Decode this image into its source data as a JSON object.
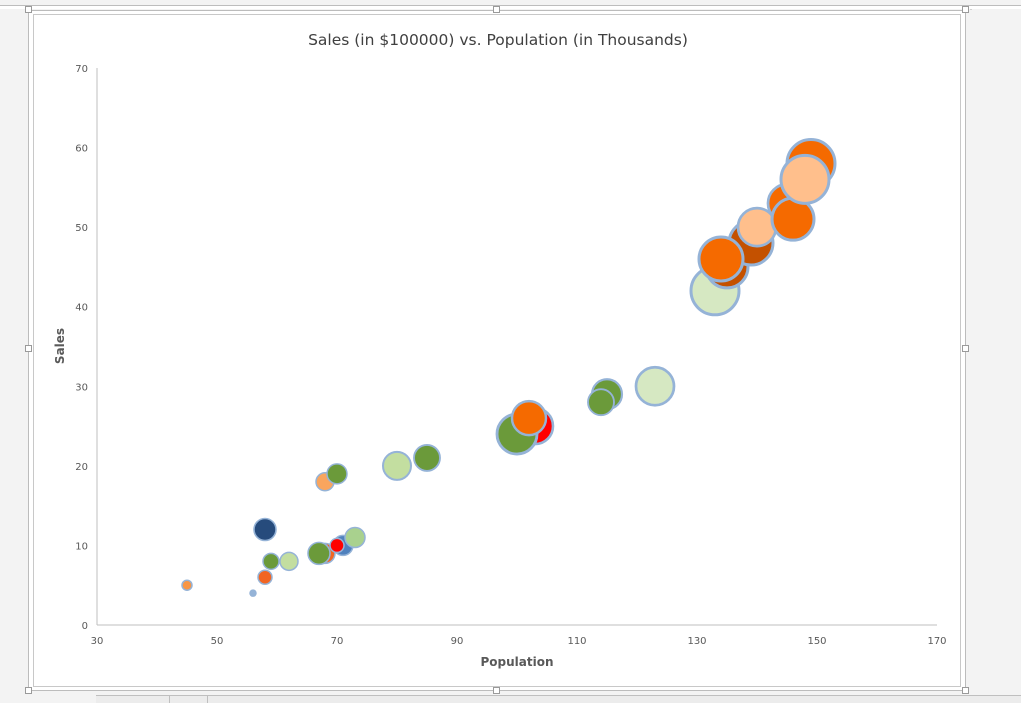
{
  "chart_data": {
    "type": "scatter",
    "subtype": "bubble",
    "title": "Sales (in $100000) vs. Population (in Thousands)",
    "xlabel": "Population",
    "ylabel": "Sales",
    "xlim": [
      30,
      170
    ],
    "ylim": [
      0,
      70
    ],
    "xticks": [
      30,
      50,
      70,
      90,
      110,
      130,
      150,
      170
    ],
    "yticks": [
      0,
      10,
      20,
      30,
      40,
      50,
      60,
      70
    ],
    "grid": false,
    "legend": null,
    "points": [
      {
        "x": 45,
        "y": 5,
        "size": 5,
        "color": "#f79646"
      },
      {
        "x": 56,
        "y": 4,
        "size": 3,
        "color": "#95b3d7"
      },
      {
        "x": 58,
        "y": 6,
        "size": 7,
        "color": "#f26522"
      },
      {
        "x": 59,
        "y": 8,
        "size": 8,
        "color": "#6b9a3a"
      },
      {
        "x": 62,
        "y": 8,
        "size": 9,
        "color": "#c3dea0"
      },
      {
        "x": 58,
        "y": 12,
        "size": 11,
        "color": "#264b7c"
      },
      {
        "x": 68,
        "y": 9,
        "size": 10,
        "color": "#f26522"
      },
      {
        "x": 67,
        "y": 9,
        "size": 11,
        "color": "#6b9a3a"
      },
      {
        "x": 71,
        "y": 10,
        "size": 10,
        "color": "#4f81bd"
      },
      {
        "x": 70,
        "y": 10,
        "size": 7,
        "color": "#ff0000"
      },
      {
        "x": 73,
        "y": 11,
        "size": 10,
        "color": "#a9d18e"
      },
      {
        "x": 68,
        "y": 18,
        "size": 9,
        "color": "#f9a55e"
      },
      {
        "x": 70,
        "y": 19,
        "size": 10,
        "color": "#6b9a3a"
      },
      {
        "x": 80,
        "y": 20,
        "size": 14,
        "color": "#c3dea0"
      },
      {
        "x": 85,
        "y": 21,
        "size": 13,
        "color": "#6b9a3a"
      },
      {
        "x": 103,
        "y": 25,
        "size": 18,
        "color": "#ff0000"
      },
      {
        "x": 100,
        "y": 24,
        "size": 20,
        "color": "#6b9a3a"
      },
      {
        "x": 102,
        "y": 26,
        "size": 17,
        "color": "#f56a00"
      },
      {
        "x": 115,
        "y": 29,
        "size": 15,
        "color": "#6b9a3a"
      },
      {
        "x": 114,
        "y": 28,
        "size": 13,
        "color": "#6b9a3a"
      },
      {
        "x": 123,
        "y": 30,
        "size": 19,
        "color": "#d6e8c2"
      },
      {
        "x": 133,
        "y": 42,
        "size": 24,
        "color": "#d6e8c2"
      },
      {
        "x": 135,
        "y": 45,
        "size": 21,
        "color": "#c45100"
      },
      {
        "x": 139,
        "y": 48,
        "size": 22,
        "color": "#c45100"
      },
      {
        "x": 134,
        "y": 46,
        "size": 22,
        "color": "#f56a00"
      },
      {
        "x": 140,
        "y": 50,
        "size": 19,
        "color": "#ffbf8c"
      },
      {
        "x": 145,
        "y": 53,
        "size": 19,
        "color": "#f56a00"
      },
      {
        "x": 146,
        "y": 51,
        "size": 21,
        "color": "#f56a00"
      },
      {
        "x": 149,
        "y": 58,
        "size": 24,
        "color": "#f56a00"
      },
      {
        "x": 148,
        "y": 56,
        "size": 24,
        "color": "#ffbf8c"
      }
    ],
    "bubble_border_color": "#95b3d7"
  },
  "colors": {
    "axis": "#bfbfbf",
    "tick_label": "#595959",
    "title": "#404040"
  }
}
